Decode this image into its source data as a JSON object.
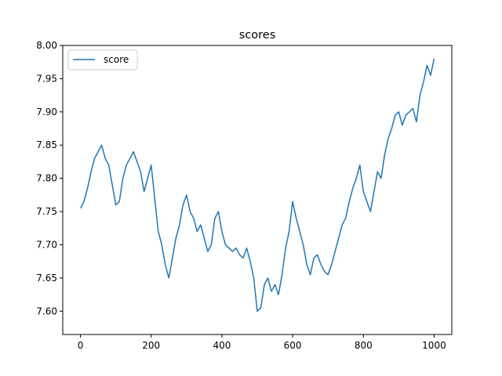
{
  "chart_data": {
    "type": "line",
    "title": "scores",
    "xlabel": "",
    "ylabel": "",
    "xlim": [
      -50,
      1050
    ],
    "ylim": [
      7.565,
      8.0
    ],
    "xticks": [
      0,
      200,
      400,
      600,
      800,
      1000
    ],
    "xtick_labels": [
      "0",
      "200",
      "400",
      "600",
      "800",
      "1000"
    ],
    "yticks": [
      7.6,
      7.65,
      7.7,
      7.75,
      7.8,
      7.85,
      7.9,
      7.95,
      8.0
    ],
    "ytick_labels": [
      "7.60",
      "7.65",
      "7.70",
      "7.75",
      "7.80",
      "7.85",
      "7.90",
      "7.95",
      "8.00"
    ],
    "grid": false,
    "legend_position": "top-left",
    "series": [
      {
        "name": "score",
        "color": "#1f77b4",
        "x": [
          0,
          10,
          20,
          30,
          40,
          50,
          60,
          70,
          80,
          90,
          100,
          110,
          120,
          130,
          140,
          150,
          160,
          170,
          180,
          190,
          200,
          210,
          220,
          230,
          240,
          250,
          260,
          270,
          280,
          290,
          300,
          310,
          320,
          330,
          340,
          350,
          360,
          370,
          380,
          390,
          400,
          410,
          420,
          430,
          440,
          450,
          460,
          470,
          480,
          490,
          500,
          510,
          520,
          530,
          540,
          550,
          560,
          570,
          580,
          590,
          600,
          610,
          620,
          630,
          640,
          650,
          660,
          670,
          680,
          690,
          700,
          710,
          720,
          730,
          740,
          750,
          760,
          770,
          780,
          790,
          800,
          810,
          820,
          830,
          840,
          850,
          860,
          870,
          880,
          890,
          900,
          910,
          920,
          930,
          940,
          950,
          960,
          970,
          980,
          990,
          1000
        ],
        "values": [
          7.755,
          7.765,
          7.785,
          7.81,
          7.83,
          7.84,
          7.85,
          7.83,
          7.82,
          7.79,
          7.76,
          7.765,
          7.8,
          7.82,
          7.83,
          7.84,
          7.825,
          7.81,
          7.78,
          7.8,
          7.82,
          7.77,
          7.72,
          7.7,
          7.67,
          7.65,
          7.68,
          7.71,
          7.73,
          7.76,
          7.775,
          7.75,
          7.74,
          7.72,
          7.73,
          7.71,
          7.69,
          7.7,
          7.74,
          7.75,
          7.72,
          7.7,
          7.695,
          7.69,
          7.695,
          7.685,
          7.68,
          7.695,
          7.675,
          7.65,
          7.6,
          7.605,
          7.64,
          7.65,
          7.63,
          7.64,
          7.625,
          7.655,
          7.695,
          7.72,
          7.765,
          7.74,
          7.72,
          7.7,
          7.67,
          7.655,
          7.68,
          7.685,
          7.67,
          7.66,
          7.655,
          7.67,
          7.69,
          7.71,
          7.73,
          7.74,
          7.765,
          7.785,
          7.8,
          7.82,
          7.78,
          7.765,
          7.75,
          7.78,
          7.81,
          7.8,
          7.835,
          7.86,
          7.875,
          7.895,
          7.9,
          7.88,
          7.895,
          7.9,
          7.905,
          7.885,
          7.925,
          7.945,
          7.97,
          7.955,
          7.98
        ]
      }
    ]
  }
}
